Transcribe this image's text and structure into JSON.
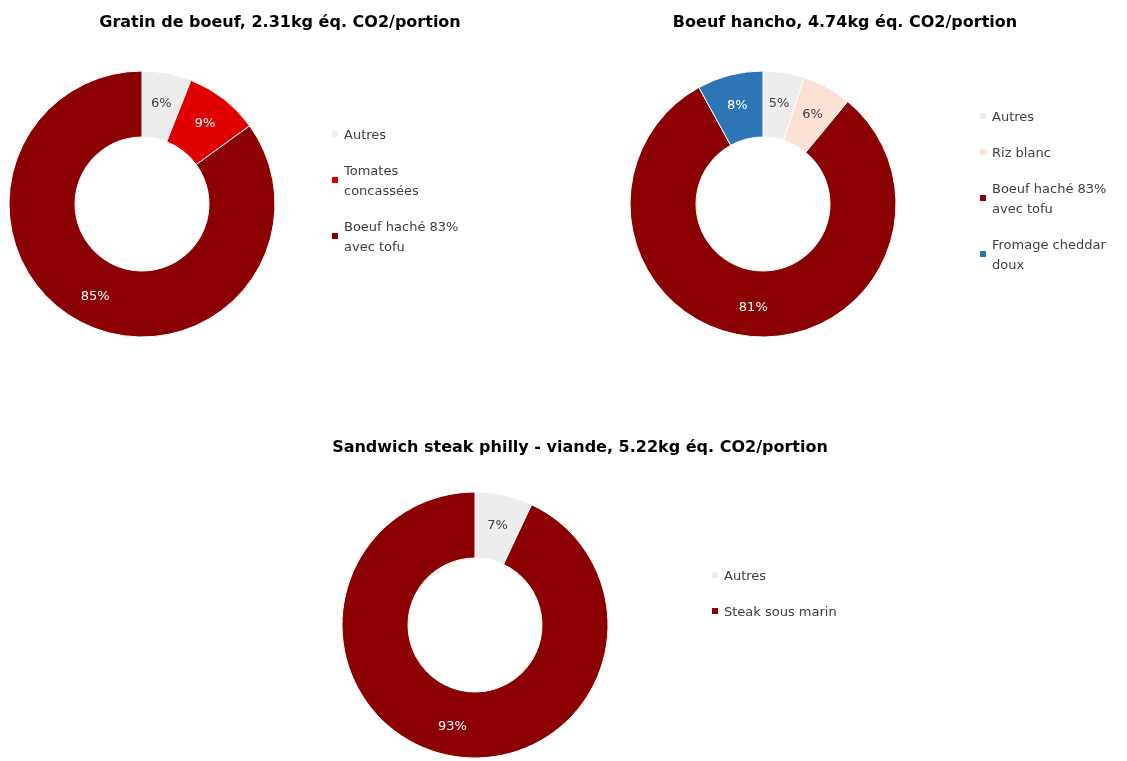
{
  "chart_data": [
    {
      "type": "donut",
      "title": "Gratin de boeuf, 2.31kg éq. CO2/portion",
      "categories": [
        "Autres",
        "Tomates concassées",
        "Boeuf haché 83% avec tofu"
      ],
      "values": [
        6,
        9,
        85
      ],
      "value_labels": [
        "6%",
        "9%",
        "85%"
      ],
      "colors": [
        "#ededed",
        "#e00000",
        "#8b0000"
      ],
      "legend": "right"
    },
    {
      "type": "donut",
      "title": "Boeuf hancho, 4.74kg éq. CO2/portion",
      "categories": [
        "Autres",
        "Riz blanc",
        "Boeuf haché 83% avec tofu",
        "Fromage cheddar doux"
      ],
      "values": [
        5,
        6,
        81,
        8
      ],
      "value_labels": [
        "5%",
        "6%",
        "81%",
        "8%"
      ],
      "colors": [
        "#ededed",
        "#fbe2d5",
        "#8b0000",
        "#2e75b6"
      ],
      "legend": "right"
    },
    {
      "type": "donut",
      "title": "Sandwich steak philly - viande, 5.22kg éq. CO2/portion",
      "categories": [
        "Autres",
        "Steak sous marin"
      ],
      "values": [
        7,
        93
      ],
      "value_labels": [
        "7%",
        "93%"
      ],
      "colors": [
        "#ededed",
        "#8b0000"
      ],
      "legend": "right"
    }
  ]
}
